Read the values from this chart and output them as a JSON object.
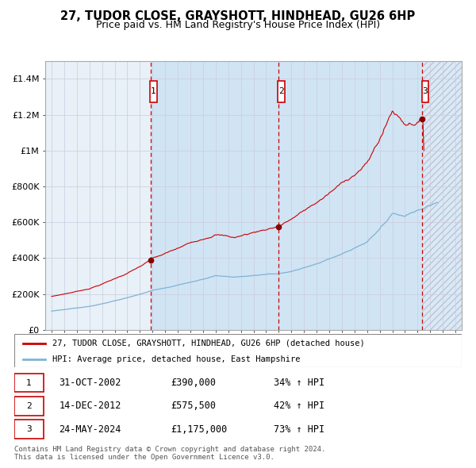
{
  "title": "27, TUDOR CLOSE, GRAYSHOTT, HINDHEAD, GU26 6HP",
  "subtitle": "Price paid vs. HM Land Registry's House Price Index (HPI)",
  "ylim": [
    0,
    1500000
  ],
  "yticks": [
    0,
    200000,
    400000,
    600000,
    800000,
    1000000,
    1200000,
    1400000
  ],
  "ytick_labels": [
    "£0",
    "£200K",
    "£400K",
    "£600K",
    "£800K",
    "£1M",
    "£1.2M",
    "£1.4M"
  ],
  "xlim_start": 1994.5,
  "xlim_end": 2027.5,
  "xticks": [
    1995,
    1996,
    1997,
    1998,
    1999,
    2000,
    2001,
    2002,
    2003,
    2004,
    2005,
    2006,
    2007,
    2008,
    2009,
    2010,
    2011,
    2012,
    2013,
    2014,
    2015,
    2016,
    2017,
    2018,
    2019,
    2020,
    2021,
    2022,
    2023,
    2024,
    2025,
    2026,
    2027
  ],
  "sale_dates": [
    2002.835,
    2012.954,
    2024.388
  ],
  "sale_prices": [
    390000,
    575500,
    1175000
  ],
  "sale_labels": [
    "1",
    "2",
    "3"
  ],
  "red_line_color": "#cc0000",
  "blue_line_color": "#7fb3d3",
  "marker_color": "#880000",
  "legend_red_label": "27, TUDOR CLOSE, GRAYSHOTT, HINDHEAD, GU26 6HP (detached house)",
  "legend_blue_label": "HPI: Average price, detached house, East Hampshire",
  "table_rows": [
    [
      "1",
      "31-OCT-2002",
      "£390,000",
      "34% ↑ HPI"
    ],
    [
      "2",
      "14-DEC-2012",
      "£575,500",
      "42% ↑ HPI"
    ],
    [
      "3",
      "24-MAY-2024",
      "£1,175,000",
      "73% ↑ HPI"
    ]
  ],
  "footer": "Contains HM Land Registry data © Crown copyright and database right 2024.\nThis data is licensed under the Open Government Licence v3.0."
}
